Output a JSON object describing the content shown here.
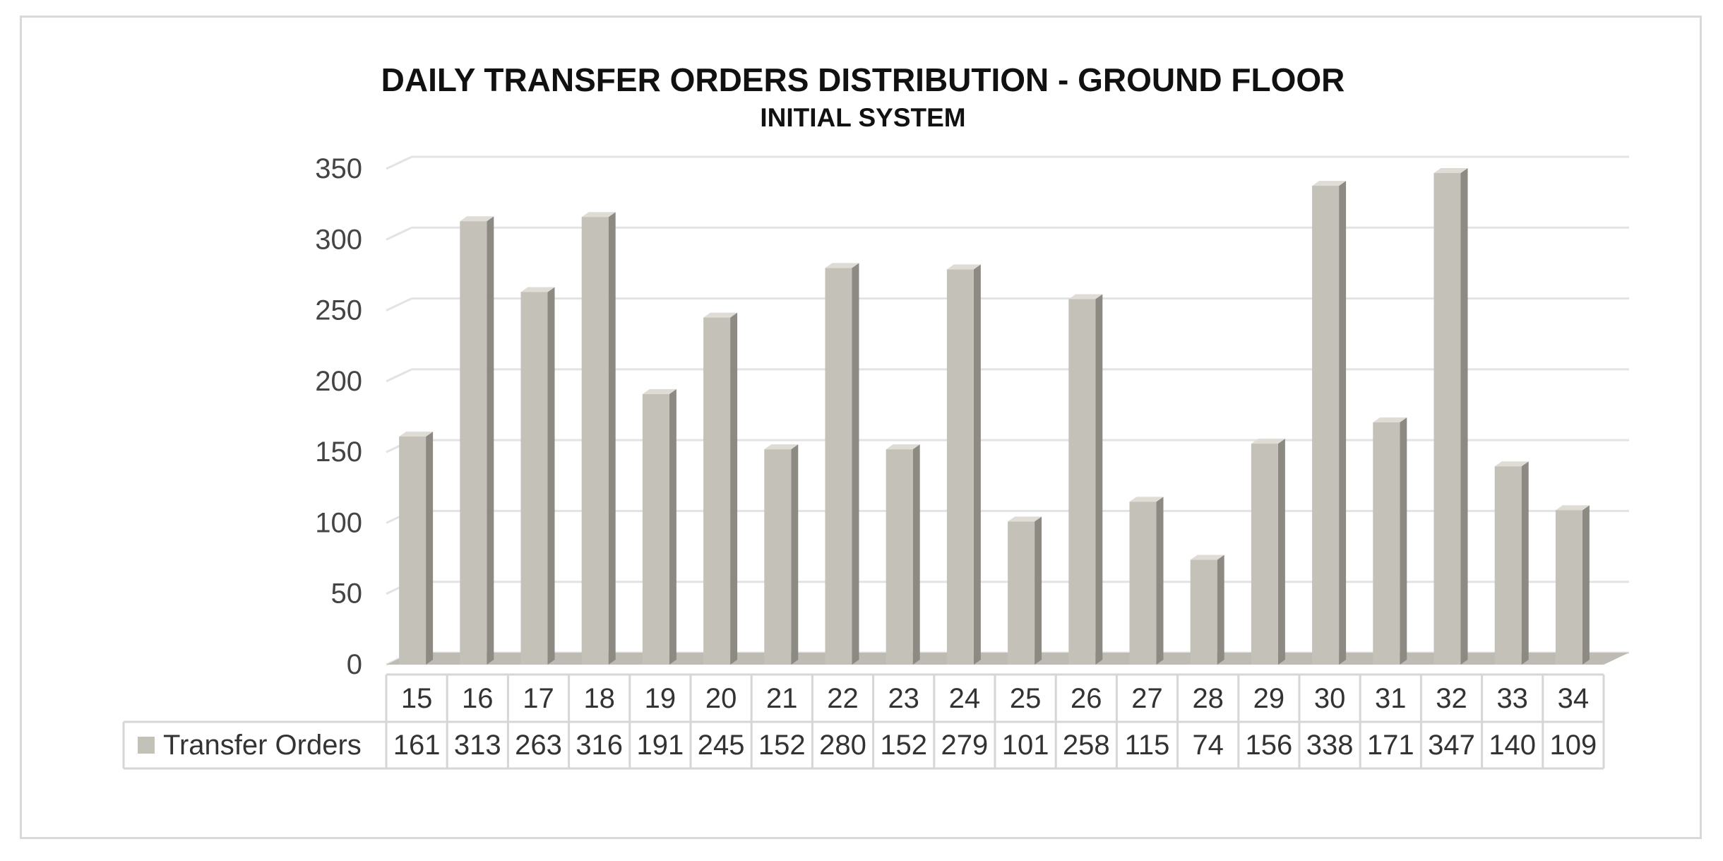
{
  "chart_data": {
    "type": "bar",
    "title": "DAILY TRANSFER ORDERS DISTRIBUTION - GROUND FLOOR",
    "subtitle": "INITIAL SYSTEM",
    "categories": [
      "15",
      "16",
      "17",
      "18",
      "19",
      "20",
      "21",
      "22",
      "23",
      "24",
      "25",
      "26",
      "27",
      "28",
      "29",
      "30",
      "31",
      "32",
      "33",
      "34"
    ],
    "series": [
      {
        "name": "Transfer Orders",
        "values": [
          161,
          313,
          263,
          316,
          191,
          245,
          152,
          280,
          152,
          279,
          101,
          258,
          115,
          74,
          156,
          338,
          171,
          347,
          140,
          109
        ]
      }
    ],
    "yticks": [
      "0",
      "50",
      "100",
      "150",
      "200",
      "250",
      "300",
      "350"
    ],
    "ylim": [
      0,
      350
    ],
    "grid": true,
    "legend": "data-table-left",
    "colors": {
      "bar_front": "#c4c1b8",
      "bar_side": "#8c8a83",
      "bar_top": "#dedcd5",
      "floor": "#bdbbb4",
      "grid": "#e3e3e3"
    }
  }
}
